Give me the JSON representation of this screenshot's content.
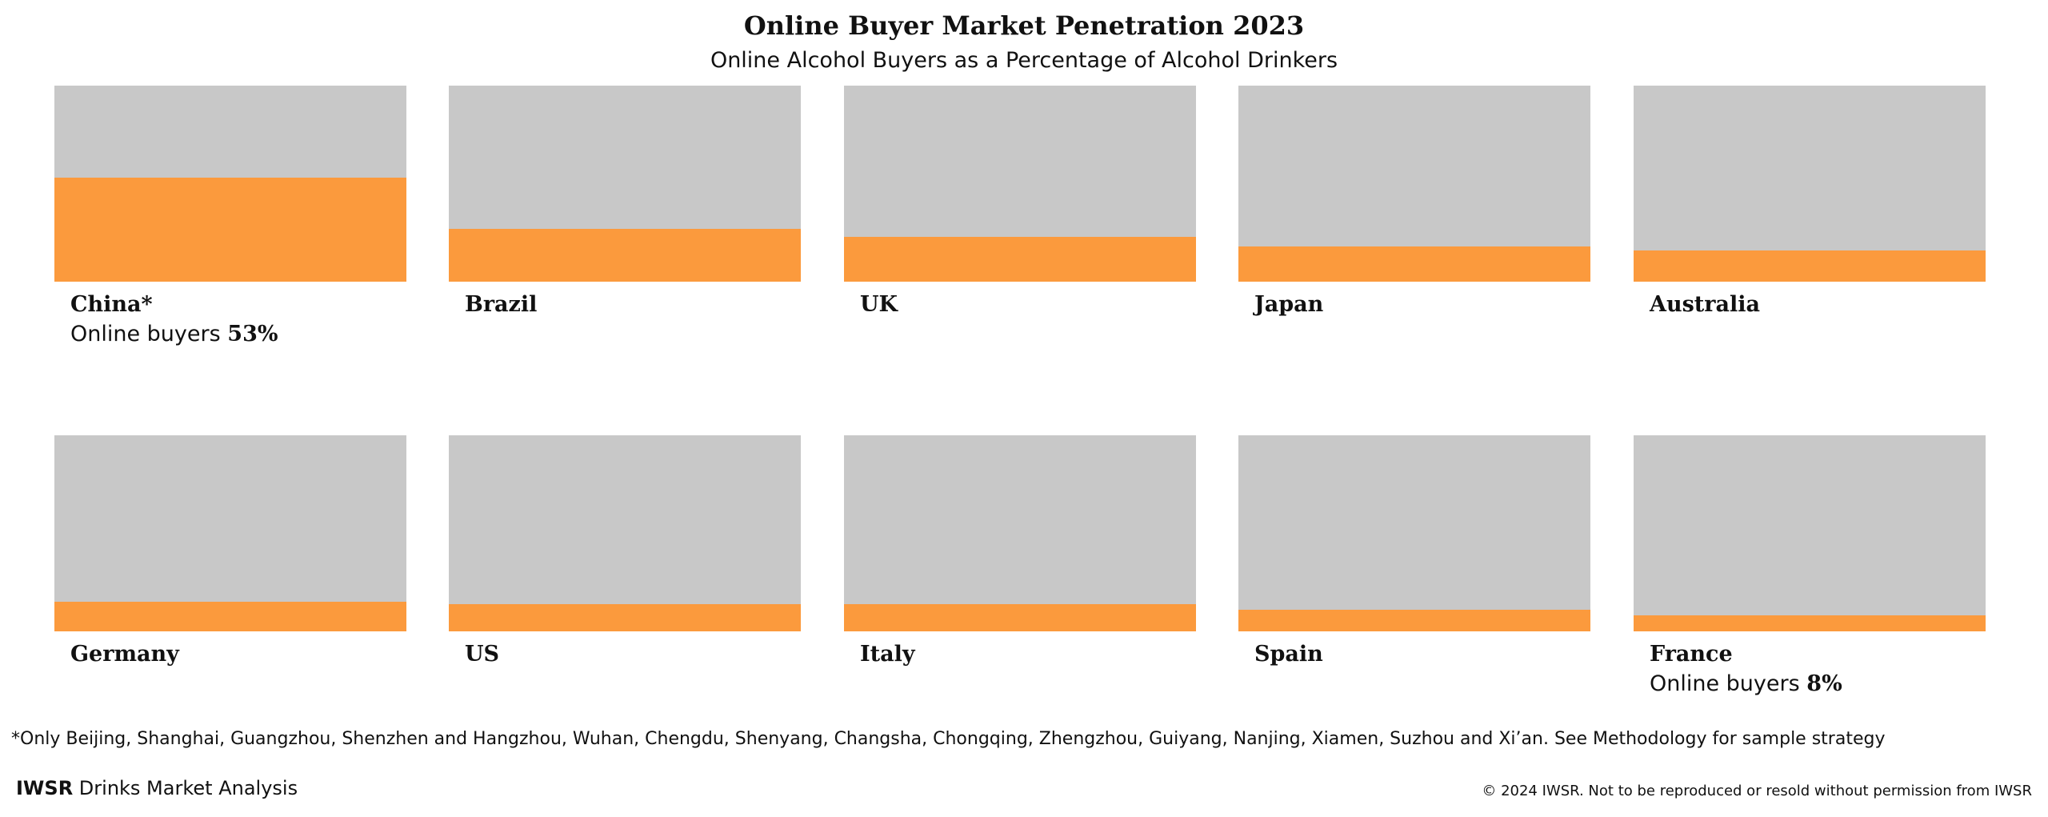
{
  "title": "Online Buyer Market Penetration 2023",
  "subtitle": "Online Alcohol Buyers as a Percentage of Alcohol Drinkers",
  "chart_data": {
    "type": "bar",
    "title": "Online Buyer Market Penetration 2023",
    "subtitle": "Online Alcohol Buyers as a Percentage of Alcohol Drinkers",
    "value_label_prefix": "Online buyers",
    "unit": "%",
    "ylim": [
      0,
      100
    ],
    "categories": [
      "China*",
      "Brazil",
      "UK",
      "Japan",
      "Australia",
      "Germany",
      "US",
      "Italy",
      "Spain",
      "France"
    ],
    "values": [
      53,
      27,
      23,
      18,
      16,
      15,
      14,
      14,
      11,
      8
    ],
    "labeled_values": [
      {
        "country": "China*",
        "text": "53%"
      },
      {
        "country": "France",
        "text": "8%"
      }
    ],
    "colors": {
      "fill": "#fb9a3d",
      "background": "#c8c8c8"
    }
  },
  "footnote": "*Only Beijing, Shanghai, Guangzhou, Shenzhen and Hangzhou, Wuhan, Chengdu, Shenyang, Changsha, Chongqing, Zhengzhou, Guiyang, Nanjing, Xiamen, Suzhou and Xi’an. See Methodology for sample strategy",
  "footer": {
    "brand_bold": "IWSR",
    "brand_rest": " Drinks Market Analysis",
    "copyright": "© 2024 IWSR. Not to be reproduced or resold without permission from IWSR"
  }
}
